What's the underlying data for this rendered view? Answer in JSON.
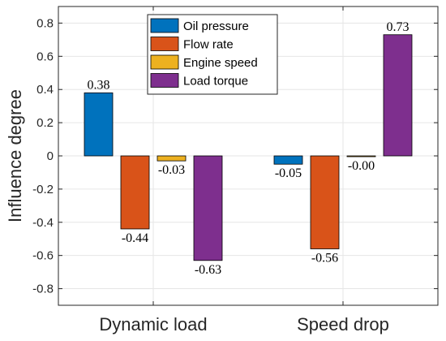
{
  "chart_data": {
    "type": "bar",
    "categories": [
      "Dynamic load",
      "Speed drop"
    ],
    "series": [
      {
        "name": "Oil pressure",
        "values": [
          0.38,
          -0.05
        ],
        "labels": [
          "0.38",
          "-0.05"
        ],
        "color": "#0072BD"
      },
      {
        "name": "Flow rate",
        "values": [
          -0.44,
          -0.56
        ],
        "labels": [
          "-0.44",
          "-0.56"
        ],
        "color": "#D95319"
      },
      {
        "name": "Engine speed",
        "values": [
          -0.03,
          -0.004
        ],
        "labels": [
          "-0.03",
          "-0.00"
        ],
        "color": "#EDB120"
      },
      {
        "name": "Load torque",
        "values": [
          -0.63,
          0.73
        ],
        "labels": [
          "-0.63",
          "0.73"
        ],
        "color": "#7E2F8E"
      }
    ],
    "ylabel": "Influence degree",
    "xlabel": "",
    "ylim": [
      -0.9,
      0.9
    ],
    "yticks": [
      -0.8,
      -0.6,
      -0.4,
      -0.2,
      0,
      0.2,
      0.4,
      0.6,
      0.8
    ],
    "ytick_labels": [
      "-0.8",
      "-0.6",
      "-0.4",
      "-0.2",
      "0",
      "0.2",
      "0.4",
      "0.6",
      "0.8"
    ],
    "grid": true,
    "legend_position": "top-center"
  }
}
